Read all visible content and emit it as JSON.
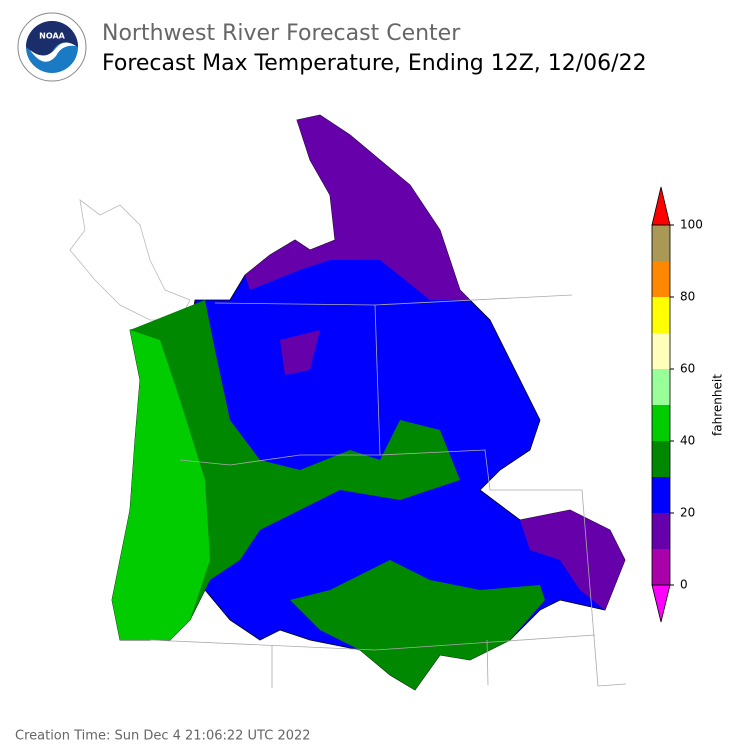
{
  "header": {
    "org": "Northwest River Forecast Center",
    "title": "Forecast Max Temperature, Ending 12Z, 12/06/22"
  },
  "colorbar": {
    "label": "fahrenheit",
    "ticks": [
      0,
      20,
      40,
      60,
      80,
      100
    ],
    "bounds": [
      0,
      10,
      20,
      30,
      40,
      50,
      60,
      70,
      80,
      90,
      100
    ],
    "colors": [
      "#aa00aa",
      "#6600aa",
      "#0000ff",
      "#008800",
      "#00cc00",
      "#99ff99",
      "#ffffbb",
      "#ffff00",
      "#ff8800",
      "#aa9955"
    ],
    "under_color": "#ff00ff",
    "over_color": "#ff0000"
  },
  "footer": {
    "creation_time": "Creation Time: Sun Dec 4 21:06:22 UTC 2022"
  }
}
